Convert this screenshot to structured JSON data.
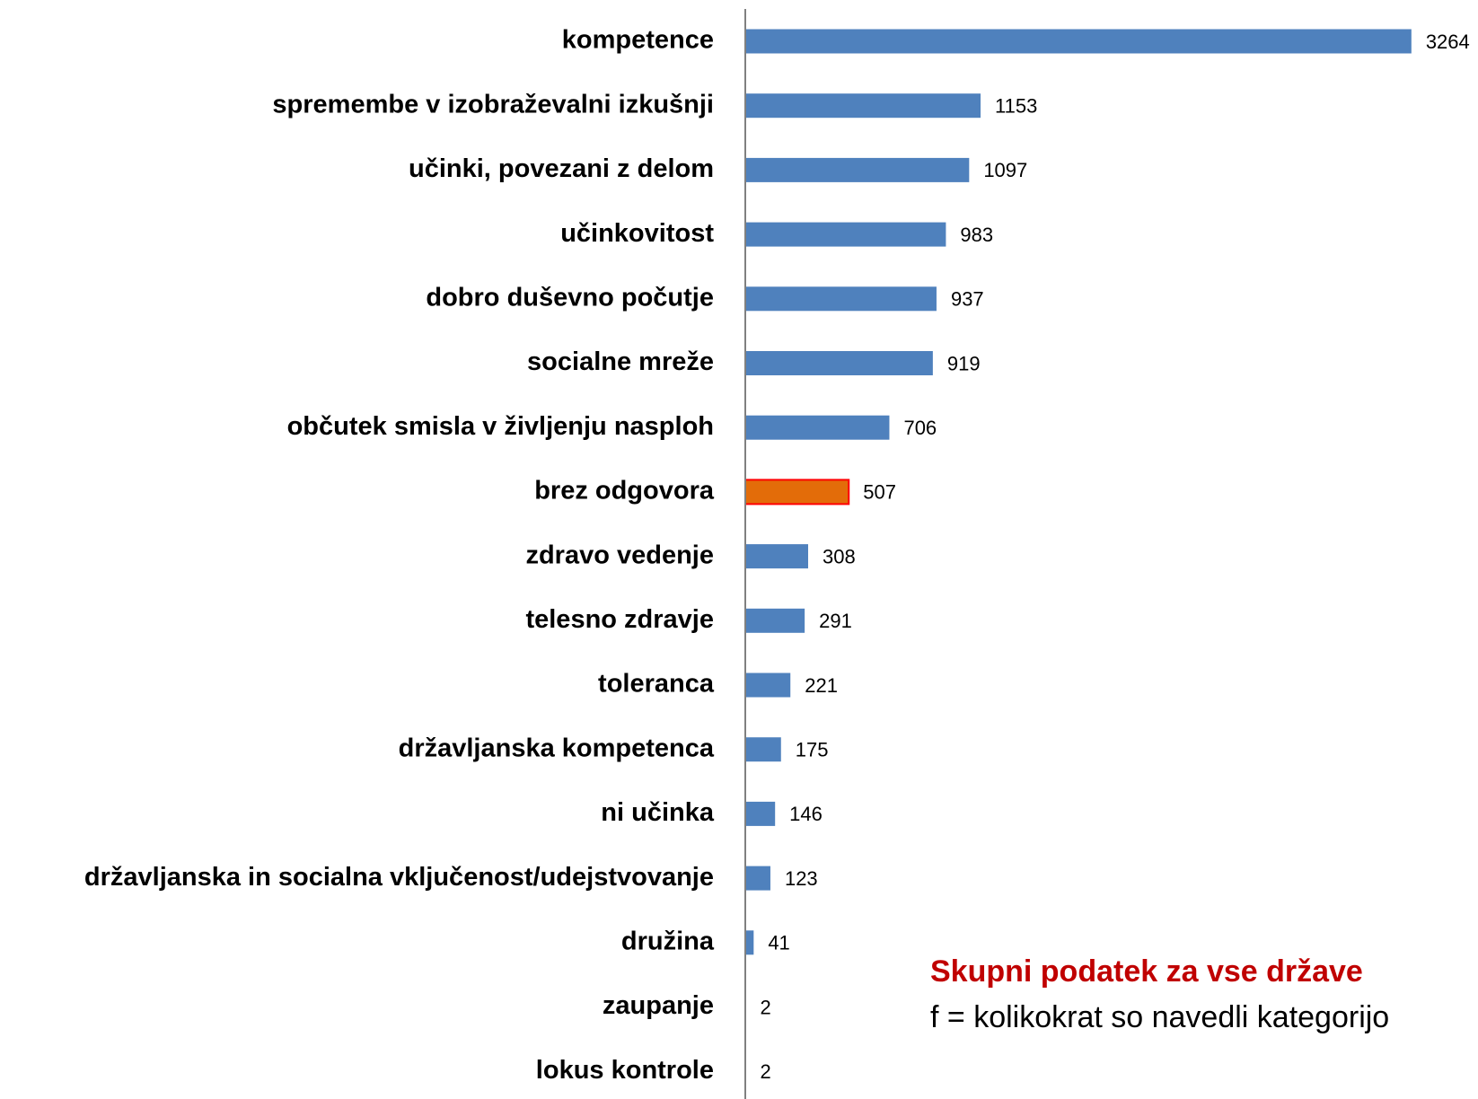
{
  "chart_data": {
    "type": "bar",
    "orientation": "horizontal",
    "categories": [
      "kompetence",
      "spremembe v izobraževalni izkušnji",
      "učinki, povezani z delom",
      "učinkovitost",
      "dobro duševno počutje",
      "socialne mreže",
      "občutek smisla v življenju nasploh",
      "brez odgovora",
      "zdravo vedenje",
      "telesno zdravje",
      "toleranca",
      "državljanska kompetenca",
      "ni učinka",
      "državljanska in socialna vključenost/udejstvovanje",
      "družina",
      "zaupanje",
      "lokus kontrole"
    ],
    "values": [
      3264,
      1153,
      1097,
      983,
      937,
      919,
      706,
      507,
      308,
      291,
      221,
      175,
      146,
      123,
      41,
      2,
      2
    ],
    "colors": [
      "#4f81bd",
      "#4f81bd",
      "#4f81bd",
      "#4f81bd",
      "#4f81bd",
      "#4f81bd",
      "#4f81bd",
      "#e36c09",
      "#4f81bd",
      "#4f81bd",
      "#4f81bd",
      "#4f81bd",
      "#4f81bd",
      "#4f81bd",
      "#4f81bd",
      "#4f81bd",
      "#4f81bd"
    ],
    "xlim": [
      0,
      3300
    ],
    "annotations": [
      "Skupni podatek za vse države",
      "f = kolikokrat so navedli kategorijo"
    ]
  }
}
